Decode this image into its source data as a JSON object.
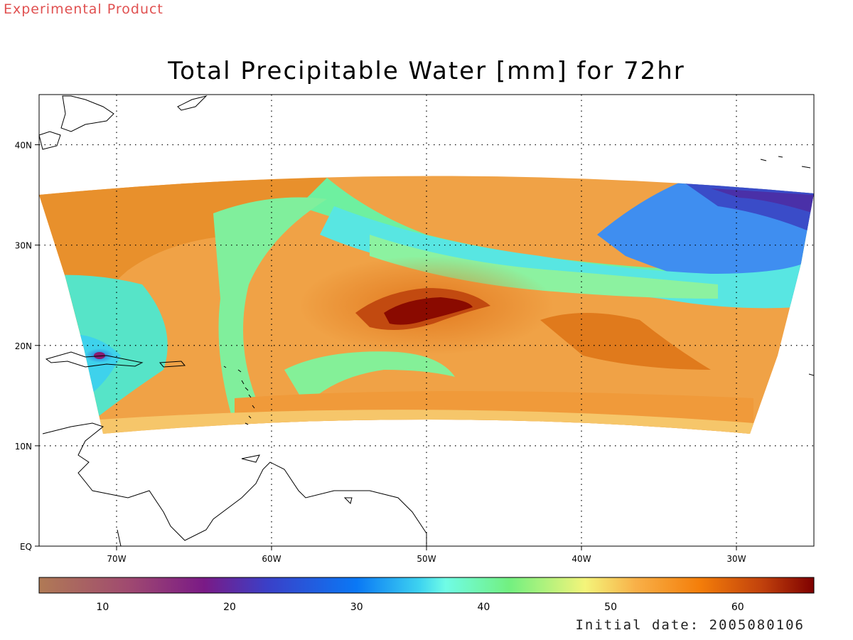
{
  "header": {
    "experimental_label": "Experimental Product",
    "title": "Total Precipitable Water [mm] for 72hr"
  },
  "footer": {
    "initial_date": "Initial date: 2005080106"
  },
  "map": {
    "lon_range": [
      -75,
      -25
    ],
    "lat_range": [
      0,
      45
    ],
    "lon_ticks": [
      {
        "value": -70,
        "label": "70W"
      },
      {
        "value": -60,
        "label": "60W"
      },
      {
        "value": -50,
        "label": "50W"
      },
      {
        "value": -40,
        "label": "40W"
      },
      {
        "value": -30,
        "label": "30W"
      }
    ],
    "lat_ticks": [
      {
        "value": 0,
        "label": "EQ"
      },
      {
        "value": 10,
        "label": "10N"
      },
      {
        "value": 20,
        "label": "20N"
      },
      {
        "value": 30,
        "label": "30N"
      },
      {
        "value": 40,
        "label": "40N"
      }
    ],
    "grid": "dotted"
  },
  "colorbar": {
    "range": [
      5,
      66
    ],
    "tick_values": [
      10,
      20,
      30,
      40,
      50,
      60
    ],
    "tick_labels": [
      "10",
      "20",
      "30",
      "40",
      "50",
      "60"
    ],
    "stops": [
      {
        "value": 5,
        "color": "#b07a55"
      },
      {
        "value": 12,
        "color": "#a04a70"
      },
      {
        "value": 18,
        "color": "#7a1a86"
      },
      {
        "value": 23,
        "color": "#3a40c8"
      },
      {
        "value": 30,
        "color": "#0a78f5"
      },
      {
        "value": 35,
        "color": "#3ed4f0"
      },
      {
        "value": 37,
        "color": "#70fce6"
      },
      {
        "value": 42,
        "color": "#72f080"
      },
      {
        "value": 48,
        "color": "#f4f47a"
      },
      {
        "value": 52,
        "color": "#f8b048"
      },
      {
        "value": 57,
        "color": "#f47e0a"
      },
      {
        "value": 62,
        "color": "#c0400c"
      },
      {
        "value": 66,
        "color": "#7e0000"
      }
    ]
  }
}
